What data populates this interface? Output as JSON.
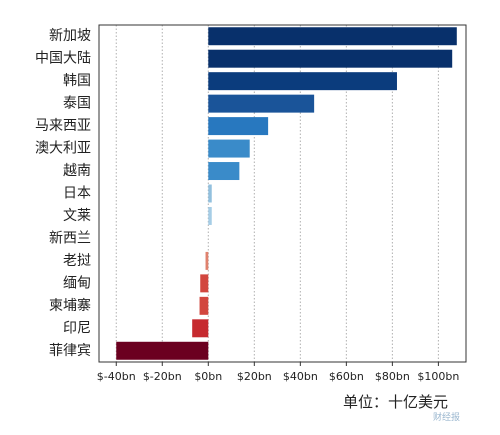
{
  "chart_data": {
    "type": "bar",
    "orientation": "horizontal",
    "categories": [
      "新加坡",
      "中国大陆",
      "韩国",
      "泰国",
      "马来西亚",
      "澳大利亚",
      "越南",
      "日本",
      "文莱",
      "新西兰",
      "老挝",
      "缅甸",
      "柬埔寨",
      "印尼",
      "菲律宾"
    ],
    "values": [
      108,
      106,
      82,
      46,
      26,
      18,
      13.5,
      1.5,
      1.5,
      0,
      -1.2,
      -3.5,
      -3.8,
      -7,
      -40
    ],
    "colors": [
      "#08306b",
      "#08306b",
      "#0b3c7d",
      "#1a5499",
      "#2878bf",
      "#3a8bc9",
      "#3a8bc9",
      "#92c0de",
      "#a6cde6",
      "#cfe1f0",
      "#e0826e",
      "#d2473f",
      "#d2473f",
      "#c62a2f",
      "#6b0020"
    ],
    "x_tick_labels": [
      "$-40bn",
      "$-20bn",
      "$0bn",
      "$20bn",
      "$40bn",
      "$60bn",
      "$80bn",
      "$100bn"
    ],
    "x_ticks": [
      -40,
      -20,
      0,
      20,
      40,
      60,
      80,
      100
    ],
    "xlim": [
      -47.5,
      112
    ],
    "grid": "vertical dotted",
    "title": "",
    "xlabel": "",
    "ylabel": "",
    "unit_note": "单位：十亿美元"
  },
  "watermark_text": "财经报"
}
